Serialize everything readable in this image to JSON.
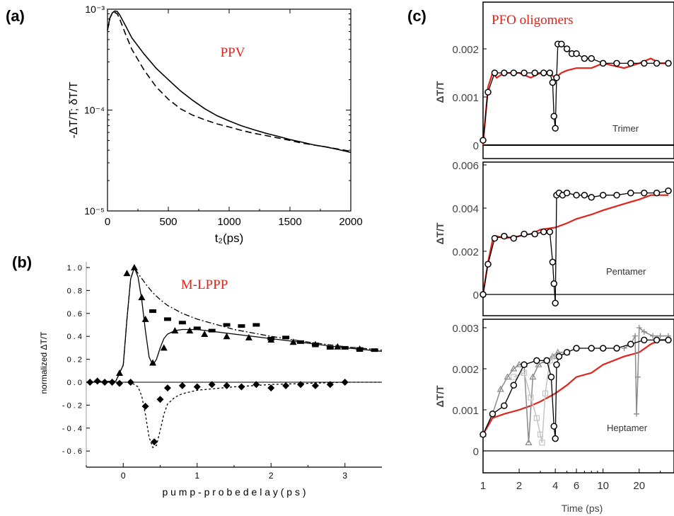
{
  "panel_labels": {
    "a": "(a)",
    "b": "(b)",
    "c": "(c)"
  },
  "colors": {
    "axis": "#000000",
    "red": "#e2231a",
    "faint_tick": "#555555",
    "gray_mid": "#8a8a8a",
    "gray_light": "#c4c4c4"
  },
  "chart_data": [
    {
      "id": "a",
      "type": "line",
      "annotation": "PPV",
      "xlabel": "t₂(ps)",
      "ylabel": "-ΔT/T; δT/T",
      "xlim": [
        0,
        2000
      ],
      "ylim": [
        1e-05,
        0.001
      ],
      "yscale": "log",
      "xticks": [
        "0",
        "500",
        "1000",
        "1500",
        "2000"
      ],
      "yticks": [
        "10⁻⁵",
        "10⁻⁴",
        "10⁻³"
      ],
      "series": [
        {
          "style": "solid",
          "x": [
            0,
            20,
            40,
            60,
            80,
            100,
            150,
            200,
            300,
            400,
            500,
            600,
            700,
            800,
            900,
            1000,
            1100,
            1200,
            1300,
            1400,
            1500,
            1600,
            1700,
            1800,
            1900,
            2000
          ],
          "y": [
            0.00062,
            0.00082,
            0.00092,
            0.00096,
            0.00095,
            0.00088,
            0.00068,
            0.00052,
            0.00036,
            0.00026,
            0.0002,
            0.000155,
            0.000125,
            0.000103,
            8.8e-05,
            7.8e-05,
            7e-05,
            6.4e-05,
            5.9e-05,
            5.5e-05,
            5.1e-05,
            4.8e-05,
            4.5e-05,
            4.3e-05,
            4.05e-05,
            3.8e-05
          ]
        },
        {
          "style": "dashed",
          "x": [
            0,
            20,
            40,
            60,
            80,
            100,
            150,
            200,
            300,
            400,
            500,
            600,
            700,
            800,
            900,
            1000,
            1100,
            1200,
            1300,
            1400,
            1500,
            1600,
            1700,
            1800,
            1900,
            2000
          ],
          "y": [
            0.00062,
            0.00082,
            0.00091,
            0.00093,
            0.0009,
            0.0008,
            0.00056,
            0.0004,
            0.00025,
            0.00017,
            0.000128,
            0.000103,
            8.9e-05,
            8e-05,
            7.3e-05,
            6.8e-05,
            6.3e-05,
            5.9e-05,
            5.6e-05,
            5.3e-05,
            5e-05,
            4.7e-05,
            4.5e-05,
            4.3e-05,
            4.1e-05,
            3.9e-05
          ]
        }
      ]
    },
    {
      "id": "b",
      "type": "line",
      "annotation": "M-LPPP",
      "xlabel": "p u m p - p r o b e   d e l a y   ( p s )",
      "ylabel": "normalized ΔT/T",
      "xlim": [
        -0.5,
        3.5
      ],
      "ylim": [
        -0.7,
        1.05
      ],
      "xticks": [
        "0",
        "1",
        "2",
        "3"
      ],
      "yticks": [
        "1 . 0",
        "0 . 8",
        "0 . 6",
        "0 . 4",
        "0 . 2",
        "0 . 0",
        "- 0 . 2",
        "- 0 . 4",
        "- 0 . 6"
      ],
      "series": [
        {
          "style": "dashdot",
          "x": [
            -0.5,
            -0.1,
            0.0,
            0.05,
            0.1,
            0.15,
            0.2,
            0.3,
            0.4,
            0.5,
            0.6,
            0.8,
            1.0,
            1.5,
            2.0,
            2.5,
            3.0,
            3.5
          ],
          "y": [
            0,
            0.01,
            0.15,
            0.55,
            0.9,
            1.0,
            0.95,
            0.86,
            0.78,
            0.72,
            0.67,
            0.6,
            0.55,
            0.46,
            0.4,
            0.35,
            0.31,
            0.28
          ]
        },
        {
          "style": "solid",
          "x": [
            -0.5,
            -0.1,
            0.0,
            0.05,
            0.1,
            0.15,
            0.2,
            0.25,
            0.3,
            0.35,
            0.4,
            0.45,
            0.5,
            0.55,
            0.6,
            0.7,
            0.8,
            1.0,
            1.5,
            2.0,
            2.5,
            3.0,
            3.5
          ],
          "y": [
            0,
            0.01,
            0.15,
            0.55,
            0.9,
            1.0,
            0.92,
            0.72,
            0.45,
            0.22,
            0.15,
            0.2,
            0.3,
            0.38,
            0.42,
            0.45,
            0.46,
            0.46,
            0.42,
            0.38,
            0.34,
            0.3,
            0.27
          ]
        },
        {
          "style": "dotted",
          "x": [
            -0.5,
            0.1,
            0.2,
            0.25,
            0.3,
            0.35,
            0.4,
            0.45,
            0.5,
            0.55,
            0.6,
            0.7,
            0.8,
            1.0,
            1.5,
            2.0,
            3.0,
            3.5
          ],
          "y": [
            0,
            0,
            -0.04,
            -0.12,
            -0.28,
            -0.48,
            -0.57,
            -0.55,
            -0.42,
            -0.28,
            -0.19,
            -0.13,
            -0.1,
            -0.07,
            -0.04,
            -0.02,
            0,
            0
          ]
        },
        {
          "style": "squares",
          "x": [
            0.4,
            0.6,
            0.8,
            1.0,
            1.2,
            1.4,
            1.6,
            1.8,
            2.0,
            2.2,
            2.4,
            2.6,
            2.8,
            3.0,
            3.2,
            3.4
          ],
          "y": [
            0.62,
            0.55,
            0.52,
            0.47,
            0.45,
            0.5,
            0.49,
            0.5,
            0.38,
            0.39,
            0.35,
            0.33,
            0.3,
            0.3,
            0.29,
            0.28
          ]
        },
        {
          "style": "triangles",
          "x": [
            -0.05,
            0.05,
            0.15,
            0.25,
            0.3,
            0.4,
            0.55,
            0.7,
            0.9,
            1.1,
            1.4,
            1.7,
            2.0,
            2.3,
            2.6,
            2.9,
            3.2
          ],
          "y": [
            0.08,
            0.95,
            1.0,
            0.74,
            0.55,
            0.17,
            0.3,
            0.45,
            0.45,
            0.42,
            0.4,
            0.39,
            0.37,
            0.35,
            0.33,
            0.31,
            0.29
          ]
        },
        {
          "style": "diamonds",
          "x": [
            -0.45,
            -0.35,
            -0.25,
            -0.15,
            -0.05,
            0.1,
            0.3,
            0.42,
            0.5,
            0.6,
            0.8,
            1.0,
            1.2,
            1.4,
            1.6,
            1.8,
            2.0,
            2.2,
            2.4,
            2.6,
            2.8,
            3.0
          ],
          "y": [
            0,
            0.01,
            0,
            0,
            -0.01,
            0,
            -0.21,
            -0.52,
            -0.15,
            -0.05,
            -0.03,
            -0.04,
            -0.02,
            -0.03,
            -0.04,
            -0.02,
            -0.05,
            -0.03,
            -0.02,
            -0.03,
            -0.02,
            0
          ]
        }
      ]
    },
    {
      "id": "c-trimer",
      "type": "line",
      "annotation": "PFO oligomers",
      "label": "Trimer",
      "ylabel": "ΔT/T",
      "xscale": "log",
      "xlim": [
        1,
        35
      ],
      "ylim": [
        -0.0004,
        0.0025
      ],
      "yticks": [
        "0.002",
        "0.001",
        "0"
      ],
      "series": [
        {
          "color": "red",
          "x": [
            1,
            1.1,
            1.2,
            1.3,
            1.5,
            2,
            2.5,
            3,
            3.5,
            4,
            4.5,
            5,
            6,
            8,
            10,
            15,
            20,
            25,
            30,
            35
          ],
          "y": [
            0,
            0.0012,
            0.0015,
            0.0014,
            0.0015,
            0.0015,
            0.0014,
            0.0015,
            0.0015,
            0.0014,
            0.0015,
            0.00155,
            0.0016,
            0.0016,
            0.0017,
            0.0016,
            0.0017,
            0.0018,
            0.0017,
            0.0017
          ]
        },
        {
          "color": "black-circles",
          "x": [
            1,
            1.1,
            1.25,
            1.5,
            1.8,
            2.2,
            2.7,
            3.2,
            3.6,
            3.8,
            3.9,
            4.0,
            4.1,
            4.2,
            4.5,
            5,
            5.5,
            6,
            7,
            8,
            10,
            13,
            17,
            22,
            28,
            35
          ],
          "y": [
            0.0001,
            0.0011,
            0.0015,
            0.0015,
            0.0015,
            0.0015,
            0.0015,
            0.0015,
            0.0015,
            0.0013,
            0.0006,
            0.00035,
            0.0014,
            0.0021,
            0.0021,
            0.002,
            0.0019,
            0.0019,
            0.0018,
            0.0018,
            0.0017,
            0.0017,
            0.0017,
            0.0017,
            0.0017,
            0.0017
          ]
        }
      ]
    },
    {
      "id": "c-pentamer",
      "type": "line",
      "label": "Pentamer",
      "ylabel": "ΔT/T",
      "xscale": "log",
      "xlim": [
        1,
        35
      ],
      "ylim": [
        -0.0007,
        0.006
      ],
      "yticks": [
        "0.006",
        "0.004",
        "0.002",
        "0"
      ],
      "series": [
        {
          "color": "red",
          "x": [
            1,
            1.1,
            1.2,
            1.3,
            1.5,
            2,
            2.5,
            3,
            4,
            5,
            6,
            8,
            10,
            15,
            20,
            25,
            30,
            35
          ],
          "y": [
            0,
            0.0015,
            0.0025,
            0.0027,
            0.0026,
            0.0027,
            0.0028,
            0.003,
            0.0031,
            0.0033,
            0.0035,
            0.0037,
            0.0039,
            0.0042,
            0.0044,
            0.0046,
            0.0046,
            0.0046
          ]
        },
        {
          "color": "black-circles",
          "x": [
            1,
            1.1,
            1.25,
            1.5,
            1.8,
            2.2,
            2.7,
            3.2,
            3.6,
            3.8,
            3.9,
            4.0,
            4.1,
            4.3,
            4.6,
            5,
            6,
            7,
            8,
            10,
            13,
            17,
            22,
            28,
            35
          ],
          "y": [
            0,
            0.0014,
            0.0026,
            0.0027,
            0.0026,
            0.0028,
            0.0028,
            0.0029,
            0.0029,
            0.0015,
            0.0005,
            -0.0004,
            0.0046,
            0.0047,
            0.0046,
            0.0047,
            0.0046,
            0.0046,
            0.0045,
            0.0046,
            0.0046,
            0.0047,
            0.0047,
            0.0047,
            0.0048
          ]
        }
      ]
    },
    {
      "id": "c-heptamer",
      "type": "line",
      "label": "Heptamer",
      "ylabel": "ΔT/T",
      "xlabel": "Time (ps)",
      "xscale": "log",
      "xlim": [
        1,
        35
      ],
      "ylim": [
        -0.0007,
        0.0031
      ],
      "xticks": [
        "1",
        "2",
        "4",
        "6",
        "10",
        "20"
      ],
      "yticks": [
        "0.003",
        "0.002",
        "0.001",
        "0"
      ],
      "series": [
        {
          "color": "red",
          "x": [
            1,
            1.2,
            1.5,
            2,
            2.5,
            3,
            4,
            5,
            6,
            8,
            10,
            15,
            20,
            25,
            30,
            35
          ],
          "y": [
            0.0004,
            0.0008,
            0.0009,
            0.001,
            0.0011,
            0.0012,
            0.0014,
            0.0016,
            0.0018,
            0.0019,
            0.0021,
            0.0023,
            0.0024,
            0.0026,
            0.0027,
            0.0027
          ]
        },
        {
          "color": "gray-mid",
          "x": [
            1,
            1.2,
            1.4,
            1.6,
            1.8,
            2.0,
            2.2,
            2.4,
            2.6,
            2.9,
            3.3,
            3.8,
            4.2,
            5
          ],
          "y": [
            0.0004,
            0.0009,
            0.0015,
            0.0018,
            0.002,
            0.0021,
            0.0021,
            0.0002,
            0.0018,
            0.0021,
            0.0022,
            0.0023,
            0.0024,
            0.0024
          ]
        },
        {
          "color": "gray-light",
          "x": [
            1.8,
            2.2,
            2.5,
            2.8,
            3.0,
            3.1,
            3.3,
            3.6,
            4.0,
            5
          ],
          "y": [
            0.0018,
            0.0019,
            0.0013,
            0.0008,
            0.0004,
            0.0002,
            0.0014,
            0.0022,
            0.0023,
            0.0024
          ]
        },
        {
          "color": "gray-plus",
          "x": [
            15,
            17,
            18.5,
            19,
            19.5,
            20,
            22,
            26,
            30,
            35
          ],
          "y": [
            0.0025,
            0.0026,
            0.0028,
            0.0009,
            0.0018,
            0.003,
            0.0029,
            0.0028,
            0.0028,
            0.0028
          ]
        },
        {
          "color": "black-circles",
          "x": [
            1,
            1.2,
            1.5,
            1.8,
            2.2,
            2.8,
            3.4,
            3.7,
            3.9,
            4.0,
            4.1,
            4.3,
            5,
            6,
            8,
            10,
            13,
            17,
            22,
            28,
            35
          ],
          "y": [
            0.0004,
            0.0009,
            0.0011,
            0.0016,
            0.0021,
            0.0022,
            0.0022,
            0.0018,
            0.0006,
            0.0003,
            0.0021,
            0.0023,
            0.0024,
            0.0025,
            0.0025,
            0.0025,
            0.0025,
            0.0026,
            0.0027,
            0.0027,
            0.0027
          ]
        }
      ]
    }
  ]
}
